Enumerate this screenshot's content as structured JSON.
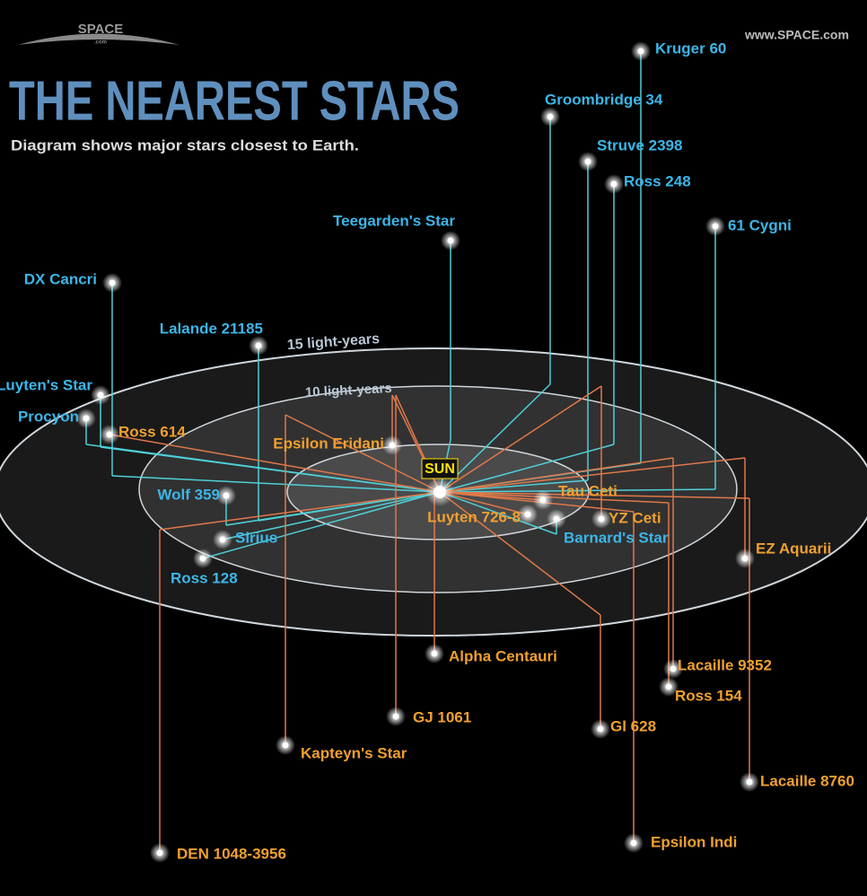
{
  "header": {
    "logo": "SPACE",
    "logo_sub": ".com",
    "url": "www.SPACE.com",
    "title": "THE NEAREST STARS",
    "subtitle": "Diagram shows major stars closest to Earth."
  },
  "rings": {
    "outer": "15 light-years",
    "middle": "10 light-years"
  },
  "sun": {
    "label": "SUN"
  },
  "stars": [
    {
      "label": "Kruger 60",
      "group": "above"
    },
    {
      "label": "Groombridge 34",
      "group": "above"
    },
    {
      "label": "Struve 2398",
      "group": "above"
    },
    {
      "label": "Ross 248",
      "group": "above"
    },
    {
      "label": "61 Cygni",
      "group": "above"
    },
    {
      "label": "Teegarden's Star",
      "group": "above"
    },
    {
      "label": "DX Cancri",
      "group": "above"
    },
    {
      "label": "Lalande 21185",
      "group": "above"
    },
    {
      "label": "Luyten's Star",
      "group": "above"
    },
    {
      "label": "Procyon",
      "group": "above"
    },
    {
      "label": "Wolf 359",
      "group": "above"
    },
    {
      "label": "Sirius",
      "group": "above"
    },
    {
      "label": "Ross 128",
      "group": "above"
    },
    {
      "label": "Barnard's Star",
      "group": "above"
    },
    {
      "label": "Ross 614",
      "group": "below"
    },
    {
      "label": "Epsilon Eridani",
      "group": "below"
    },
    {
      "label": "Tau Ceti",
      "group": "below"
    },
    {
      "label": "Luyten 726-8",
      "group": "below"
    },
    {
      "label": "YZ Ceti",
      "group": "below"
    },
    {
      "label": "EZ Aquarii",
      "group": "below"
    },
    {
      "label": "Alpha Centauri",
      "group": "below"
    },
    {
      "label": "Lacaille 9352",
      "group": "below"
    },
    {
      "label": "Ross 154",
      "group": "below"
    },
    {
      "label": "GJ 1061",
      "group": "below"
    },
    {
      "label": "Gl 628",
      "group": "below"
    },
    {
      "label": "Kapteyn's Star",
      "group": "below"
    },
    {
      "label": "Lacaille 8760",
      "group": "below"
    },
    {
      "label": "Epsilon Indi",
      "group": "below"
    },
    {
      "label": "DEN 1048-3956",
      "group": "below"
    }
  ]
}
